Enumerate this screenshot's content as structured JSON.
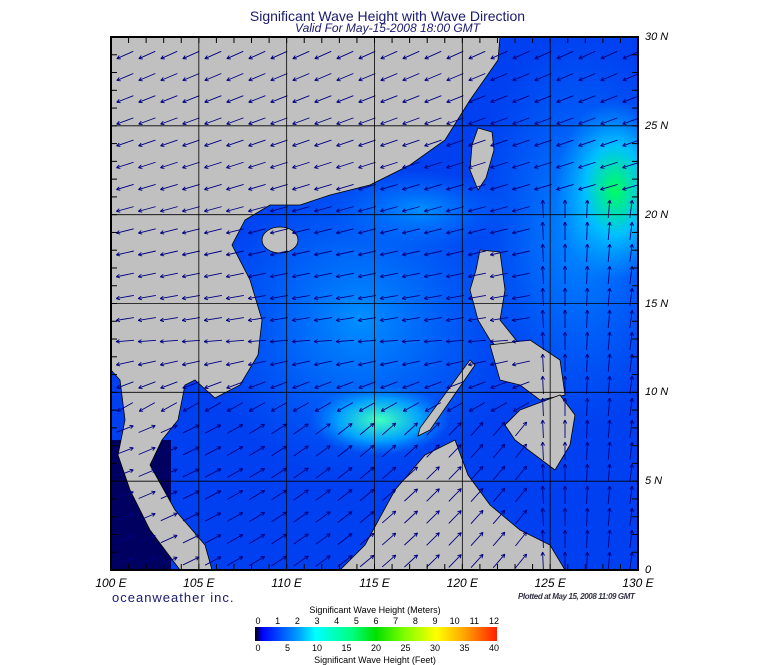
{
  "header": {
    "title": "Significant Wave Height with Wave Direction",
    "subtitle": "Valid For May-15-2008 18:00 GMT"
  },
  "map": {
    "lon_labels": [
      "100 E",
      "105 E",
      "110 E",
      "115 E",
      "120 E",
      "125 E",
      "130 E"
    ],
    "lat_labels": [
      "30 N",
      "25 N",
      "20 N",
      "15 N",
      "10 N",
      "5 N",
      "0"
    ],
    "lon_range": [
      100,
      130
    ],
    "lat_range": [
      0,
      30
    ],
    "colors": {
      "land": "#c0c0c0",
      "ocean_low": "#0030e0",
      "ocean_mid": "#0080ff",
      "ocean_high": "#00ff60",
      "arrow": "#000080"
    }
  },
  "footer": {
    "brand": "oceanweather inc.",
    "plotted": "Plotted at May 15, 2008 11:09 GMT"
  },
  "colorbar": {
    "meters_label": "Significant Wave Height (Meters)",
    "feet_label": "Significant Wave Height (Feet)",
    "meters_ticks": [
      "0",
      "1",
      "2",
      "3",
      "4",
      "5",
      "6",
      "7",
      "8",
      "9",
      "10",
      "11",
      "12"
    ],
    "feet_ticks": [
      "0",
      "5",
      "10",
      "15",
      "20",
      "25",
      "30",
      "35",
      "40"
    ]
  }
}
